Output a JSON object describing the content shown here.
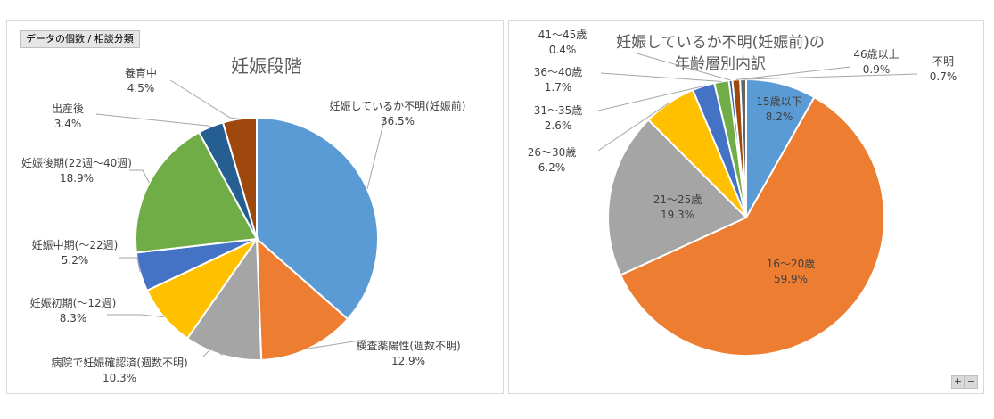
{
  "field_button": "データの個数 / 相談分類",
  "zoom": {
    "plus": "+",
    "minus": "−"
  },
  "chart_data": [
    {
      "type": "pie",
      "title": "妊娠段階",
      "unit": "%",
      "slices": [
        {
          "label": "妊娠しているか不明(妊娠前)",
          "value": 36.5,
          "color": "#5b9bd5"
        },
        {
          "label": "検査薬陽性(週数不明)",
          "value": 12.9,
          "color": "#ed7d31"
        },
        {
          "label": "病院で妊娠確認済(週数不明)",
          "value": 10.3,
          "color": "#a5a5a5"
        },
        {
          "label": "妊娠初期(〜12週)",
          "value": 8.3,
          "color": "#ffc000"
        },
        {
          "label": "妊娠中期(〜22週)",
          "value": 5.2,
          "color": "#4472c4"
        },
        {
          "label": "妊娠後期(22週〜40週)",
          "value": 18.9,
          "color": "#70ad47"
        },
        {
          "label": "出産後",
          "value": 3.4,
          "color": "#255e91"
        },
        {
          "label": "養育中",
          "value": 4.5,
          "color": "#9e480e"
        }
      ]
    },
    {
      "type": "pie",
      "title": "妊娠しているか不明(妊娠前)の 年齢層別内訳",
      "title_lines": [
        "妊娠しているか不明(妊娠前)の",
        "年齢層別内訳"
      ],
      "unit": "%",
      "slices": [
        {
          "label": "15歳以下",
          "value": 8.2,
          "color": "#5b9bd5"
        },
        {
          "label": "16〜20歳",
          "value": 59.9,
          "color": "#ed7d31"
        },
        {
          "label": "21〜25歳",
          "value": 19.3,
          "color": "#a5a5a5"
        },
        {
          "label": "26〜30歳",
          "value": 6.2,
          "color": "#ffc000"
        },
        {
          "label": "31〜35歳",
          "value": 2.6,
          "color": "#4472c4"
        },
        {
          "label": "36〜40歳",
          "value": 1.7,
          "color": "#70ad47"
        },
        {
          "label": "41〜45歳",
          "value": 0.4,
          "color": "#255e91"
        },
        {
          "label": "46歳以上",
          "value": 0.9,
          "color": "#9e480e"
        },
        {
          "label": "不明",
          "value": 0.7,
          "color": "#636363"
        }
      ]
    }
  ]
}
